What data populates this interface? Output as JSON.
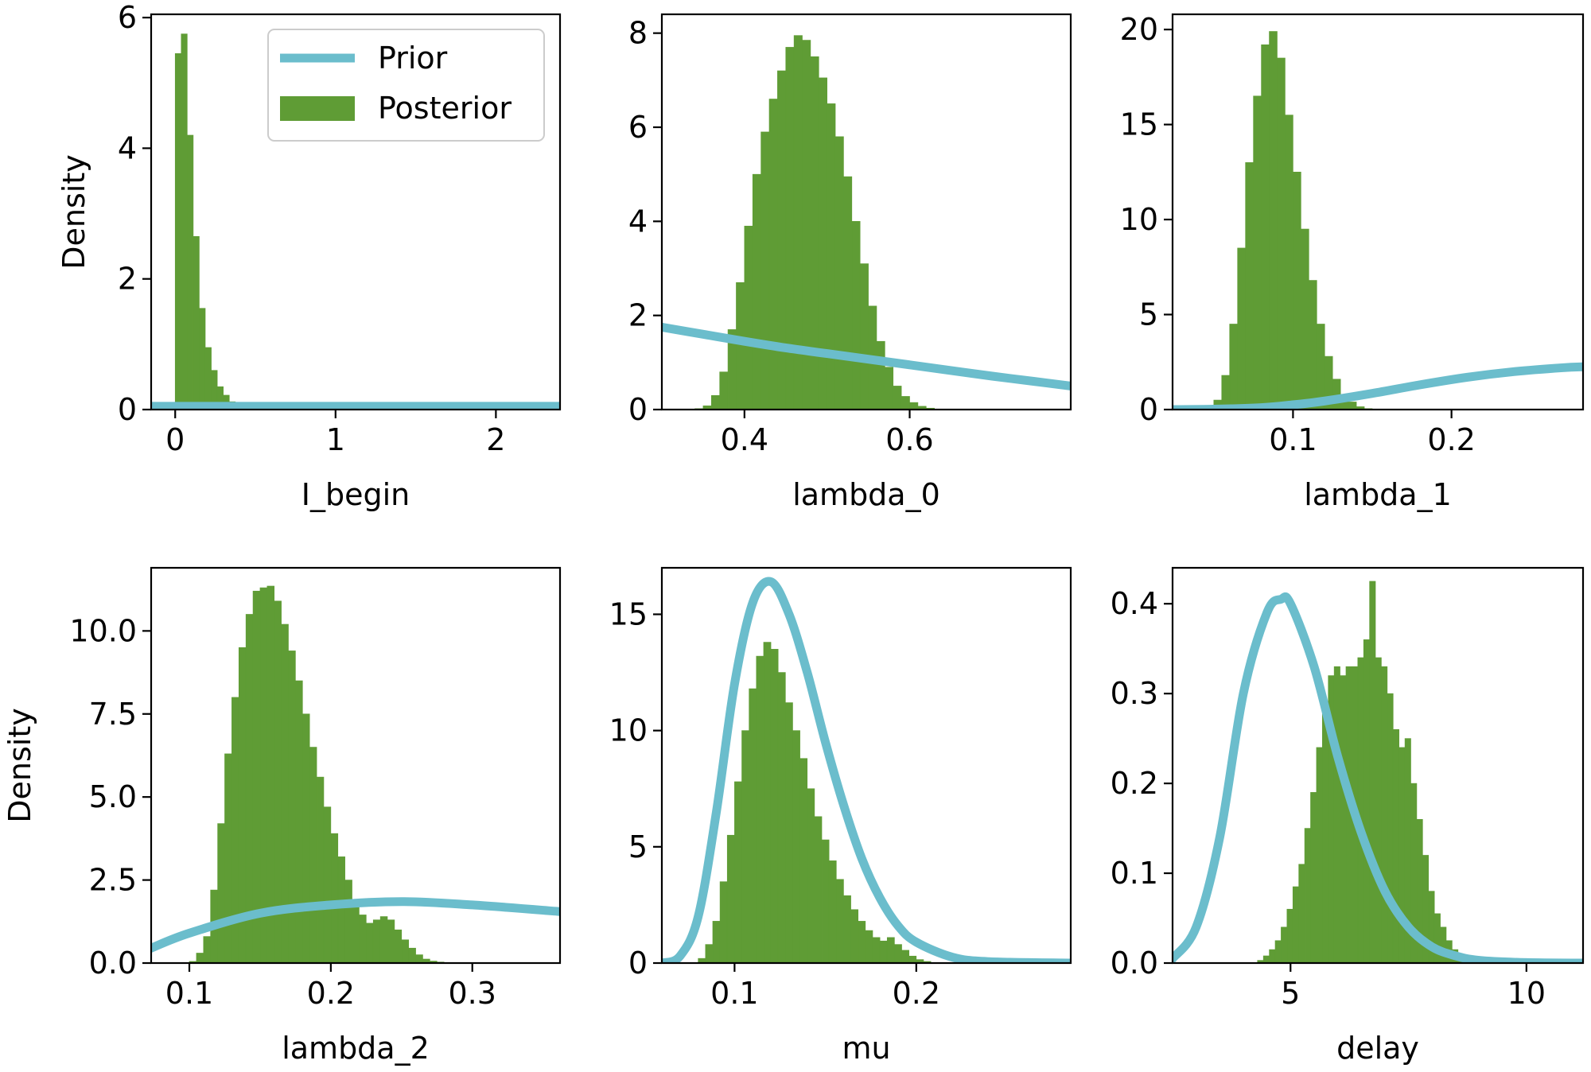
{
  "colors": {
    "prior": "#6bbdcc",
    "posterior": "#5f9c35",
    "axis": "#000000",
    "background": "#ffffff"
  },
  "legend": {
    "prior_label": "Prior",
    "posterior_label": "Posterior"
  },
  "chart_data": [
    {
      "type": "histogram-with-density",
      "xlabel": "I_begin",
      "ylabel": "Density",
      "xlim": [
        -0.15,
        2.4
      ],
      "ylim": [
        0,
        6.05
      ],
      "xticks": [
        0,
        1,
        2
      ],
      "xtick_labels": [
        "0",
        "1",
        "2"
      ],
      "yticks": [
        0,
        2,
        4,
        6
      ],
      "ytick_labels": [
        "0",
        "2",
        "4",
        "6"
      ],
      "legend": "top-right",
      "posterior_histogram": {
        "bin_start": 0.0,
        "bin_width": 0.0375,
        "densities": [
          5.45,
          5.75,
          4.2,
          2.65,
          1.55,
          0.95,
          0.6,
          0.35,
          0.22,
          0.12,
          0.07,
          0.04,
          0.02,
          0.01
        ]
      },
      "prior_density": {
        "x": [
          -0.15,
          2.4
        ],
        "y": [
          0.05,
          0.05
        ]
      }
    },
    {
      "type": "histogram-with-density",
      "xlabel": "lambda_0",
      "ylabel": "",
      "xlim": [
        0.3,
        0.795
      ],
      "ylim": [
        0,
        8.4
      ],
      "xticks": [
        0.4,
        0.6
      ],
      "xtick_labels": [
        "0.4",
        "0.6"
      ],
      "yticks": [
        0,
        2,
        4,
        6,
        8
      ],
      "ytick_labels": [
        "0",
        "2",
        "4",
        "6",
        "8"
      ],
      "posterior_histogram": {
        "bin_start": 0.34,
        "bin_width": 0.01,
        "densities": [
          0.02,
          0.08,
          0.3,
          0.8,
          1.7,
          2.7,
          3.9,
          5.0,
          5.9,
          6.6,
          7.2,
          7.7,
          7.95,
          7.85,
          7.5,
          7.05,
          6.5,
          5.8,
          4.95,
          4.0,
          3.1,
          2.2,
          1.45,
          0.9,
          0.5,
          0.28,
          0.15,
          0.07,
          0.03
        ]
      },
      "prior_density": {
        "x": [
          0.3,
          0.35,
          0.4,
          0.45,
          0.5,
          0.55,
          0.6,
          0.65,
          0.7,
          0.75,
          0.795
        ],
        "y": [
          1.75,
          1.6,
          1.45,
          1.31,
          1.19,
          1.07,
          0.95,
          0.83,
          0.71,
          0.6,
          0.5
        ]
      }
    },
    {
      "type": "histogram-with-density",
      "xlabel": "lambda_1",
      "ylabel": "",
      "xlim": [
        0.024,
        0.283
      ],
      "ylim": [
        0,
        20.8
      ],
      "xticks": [
        0.1,
        0.2
      ],
      "xtick_labels": [
        "0.1",
        "0.2"
      ],
      "yticks": [
        0,
        5,
        10,
        15,
        20
      ],
      "ytick_labels": [
        "0",
        "5",
        "10",
        "15",
        "20"
      ],
      "posterior_histogram": {
        "bin_start": 0.05,
        "bin_width": 0.005,
        "densities": [
          0.5,
          1.8,
          4.5,
          8.5,
          13.0,
          16.5,
          19.2,
          19.9,
          18.5,
          15.5,
          12.5,
          9.5,
          6.8,
          4.5,
          2.8,
          1.6,
          0.8,
          0.4,
          0.15,
          0.05
        ]
      },
      "prior_density": {
        "x": [
          0.024,
          0.05,
          0.08,
          0.1,
          0.12,
          0.15,
          0.18,
          0.21,
          0.24,
          0.27,
          0.283
        ],
        "y": [
          0,
          0.02,
          0.1,
          0.25,
          0.45,
          0.85,
          1.3,
          1.7,
          2.0,
          2.2,
          2.25
        ]
      }
    },
    {
      "type": "histogram-with-density",
      "xlabel": "lambda_2",
      "ylabel": "Density",
      "xlim": [
        0.073,
        0.362
      ],
      "ylim": [
        0,
        11.9
      ],
      "xticks": [
        0.1,
        0.2,
        0.3
      ],
      "xtick_labels": [
        "0.1",
        "0.2",
        "0.3"
      ],
      "yticks": [
        0,
        2.5,
        5,
        7.5,
        10
      ],
      "ytick_labels": [
        "0.0",
        "2.5",
        "5.0",
        "7.5",
        "10.0"
      ],
      "posterior_histogram": {
        "bin_start": 0.1,
        "bin_width": 0.005,
        "densities": [
          0.05,
          0.3,
          0.8,
          2.2,
          4.2,
          6.3,
          8.0,
          9.5,
          10.5,
          11.2,
          11.3,
          11.35,
          10.9,
          10.2,
          9.4,
          8.5,
          7.5,
          6.5,
          5.6,
          4.7,
          3.9,
          3.2,
          2.5,
          1.9,
          1.45,
          1.2,
          1.3,
          1.4,
          1.3,
          1.0,
          0.7,
          0.45,
          0.25,
          0.12,
          0.06,
          0.03
        ]
      },
      "prior_density": {
        "x": [
          0.073,
          0.1,
          0.15,
          0.2,
          0.25,
          0.3,
          0.362
        ],
        "y": [
          0.45,
          0.9,
          1.5,
          1.75,
          1.85,
          1.75,
          1.55
        ]
      }
    },
    {
      "type": "histogram-with-density",
      "xlabel": "mu",
      "ylabel": "",
      "xlim": [
        0.06,
        0.285
      ],
      "ylim": [
        0,
        17.0
      ],
      "xticks": [
        0.1,
        0.2
      ],
      "xtick_labels": [
        "0.1",
        "0.2"
      ],
      "yticks": [
        0,
        5,
        10,
        15
      ],
      "ytick_labels": [
        "0",
        "5",
        "10",
        "15"
      ],
      "posterior_histogram": {
        "bin_start": 0.08,
        "bin_width": 0.004,
        "densities": [
          0.2,
          0.8,
          1.8,
          3.5,
          5.5,
          7.8,
          10.0,
          11.8,
          13.2,
          13.8,
          13.5,
          12.5,
          11.2,
          10.0,
          8.8,
          7.5,
          6.3,
          5.3,
          4.4,
          3.6,
          2.9,
          2.3,
          1.8,
          1.4,
          1.1,
          0.95,
          1.1,
          0.8,
          0.55,
          0.3,
          0.15,
          0.07
        ]
      },
      "prior_density": {
        "x": [
          0.06,
          0.07,
          0.08,
          0.09,
          0.1,
          0.11,
          0.12,
          0.13,
          0.14,
          0.15,
          0.16,
          0.17,
          0.18,
          0.19,
          0.2,
          0.22,
          0.24,
          0.285
        ],
        "y": [
          0.0,
          0.3,
          2.0,
          6.5,
          12.0,
          15.5,
          16.4,
          15.0,
          12.5,
          9.5,
          6.8,
          4.5,
          2.8,
          1.6,
          0.9,
          0.25,
          0.06,
          0.0
        ]
      }
    },
    {
      "type": "histogram-with-density",
      "xlabel": "delay",
      "ylabel": "",
      "xlim": [
        2.5,
        11.2
      ],
      "ylim": [
        0,
        0.44
      ],
      "xticks": [
        5,
        10
      ],
      "xtick_labels": [
        "5",
        "10"
      ],
      "yticks": [
        0,
        0.1,
        0.2,
        0.3,
        0.4
      ],
      "ytick_labels": [
        "0.0",
        "0.1",
        "0.2",
        "0.3",
        "0.4"
      ],
      "posterior_histogram": {
        "bin_start": 4.3,
        "bin_width": 0.125,
        "densities": [
          0.003,
          0.008,
          0.015,
          0.025,
          0.04,
          0.06,
          0.085,
          0.11,
          0.15,
          0.19,
          0.24,
          0.29,
          0.32,
          0.33,
          0.32,
          0.33,
          0.33,
          0.34,
          0.36,
          0.425,
          0.34,
          0.33,
          0.3,
          0.26,
          0.24,
          0.25,
          0.2,
          0.16,
          0.12,
          0.08,
          0.055,
          0.04,
          0.025,
          0.015,
          0.008,
          0.004
        ]
      },
      "prior_density": {
        "x": [
          2.5,
          3.0,
          3.5,
          4.0,
          4.5,
          4.8,
          5.0,
          5.5,
          6.0,
          6.5,
          7.0,
          7.5,
          8.0,
          8.5,
          9.0,
          10.0,
          11.2
        ],
        "y": [
          0.005,
          0.04,
          0.14,
          0.3,
          0.39,
          0.405,
          0.4,
          0.33,
          0.23,
          0.145,
          0.08,
          0.04,
          0.018,
          0.008,
          0.003,
          0.0005,
          0.0
        ]
      }
    }
  ]
}
